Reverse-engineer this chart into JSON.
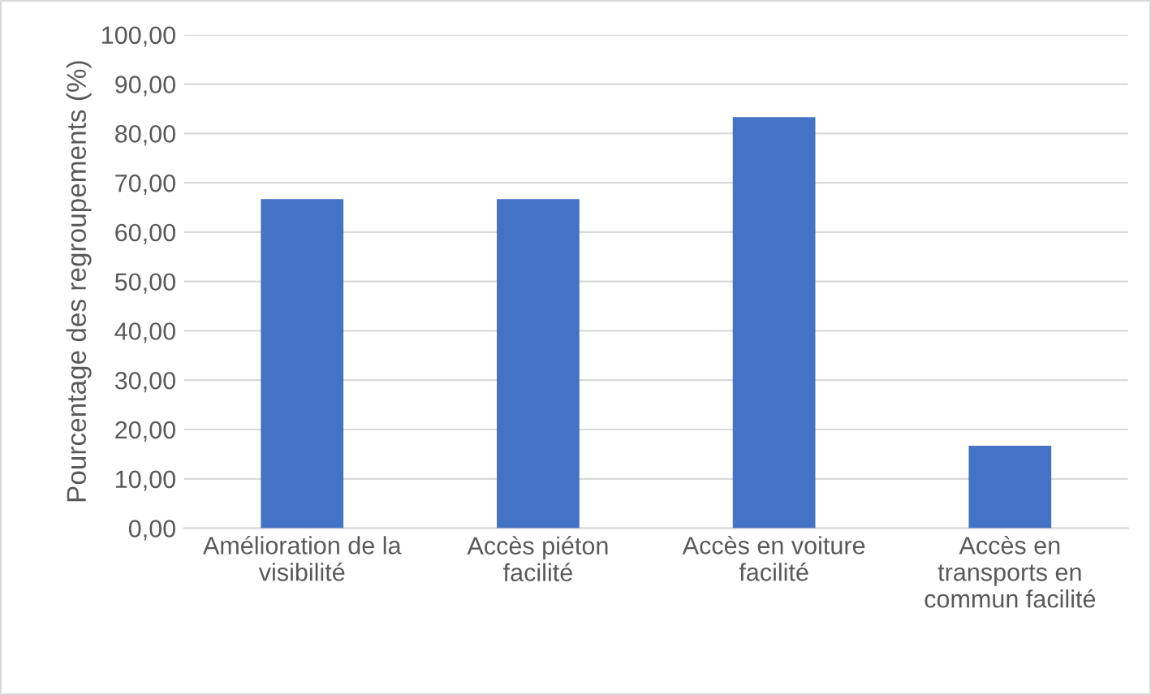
{
  "chart_data": {
    "type": "bar",
    "ylabel": "Pourcentage des regroupements (%)",
    "categories": [
      "Amélioration de la\nvisibilité",
      "Accès piéton\nfacilité",
      "Accès en voiture\nfacilité",
      "Accès en\ntransports en\ncommun facilité"
    ],
    "values": [
      66.7,
      66.7,
      83.3,
      16.7
    ],
    "color": "#4472c4",
    "ylim": [
      0,
      100
    ],
    "yticks": [
      {
        "value": 0,
        "label": "0,00"
      },
      {
        "value": 10,
        "label": "10,00"
      },
      {
        "value": 20,
        "label": "20,00"
      },
      {
        "value": 30,
        "label": "30,00"
      },
      {
        "value": 40,
        "label": "40,00"
      },
      {
        "value": 50,
        "label": "50,00"
      },
      {
        "value": 60,
        "label": "60,00"
      },
      {
        "value": 70,
        "label": "70,00"
      },
      {
        "value": 80,
        "label": "80,00"
      },
      {
        "value": 90,
        "label": "90,00"
      },
      {
        "value": 100,
        "label": "100,00"
      }
    ],
    "grid": "y"
  }
}
